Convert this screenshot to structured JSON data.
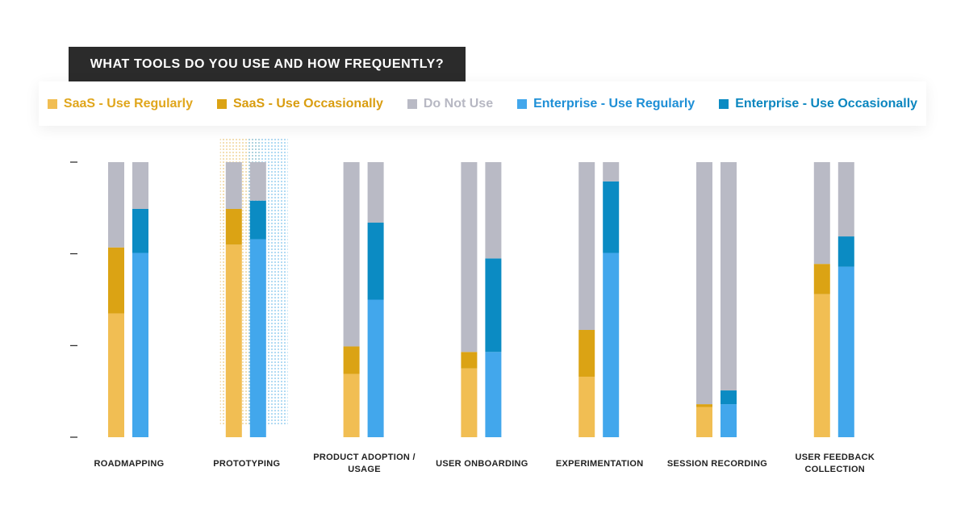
{
  "title": "WHAT TOOLS DO YOU USE AND HOW FREQUENTLY?",
  "legend": [
    {
      "label": "SaaS - Use Regularly",
      "color": "#f1be53",
      "text_color": "#e0a61c"
    },
    {
      "label": "SaaS - Use Occasionally",
      "color": "#dba314",
      "text_color": "#d99d10"
    },
    {
      "label": "Do Not Use",
      "color": "#b9bac5",
      "text_color": "#b7b8c3"
    },
    {
      "label": "Enterprise - Use Regularly",
      "color": "#42a7ec",
      "text_color": "#1e8fd6"
    },
    {
      "label": "Enterprise - Use Occasionally",
      "color": "#0b8bc3",
      "text_color": "#0b86bf"
    }
  ],
  "chart_data": {
    "type": "bar",
    "stacked": true,
    "grouped": true,
    "ylim": [
      0,
      100
    ],
    "y_ticks": [
      0,
      33.3,
      66.7,
      100
    ],
    "y_tick_labels": [
      "",
      "",
      "",
      ""
    ],
    "grid": false,
    "legend_position": "top",
    "categories": [
      {
        "label": [
          "ROADMAPPING"
        ]
      },
      {
        "label": [
          "PROTOTYPING"
        ],
        "highlighted": true
      },
      {
        "label": [
          "PRODUCT ADOPTION /",
          "USAGE"
        ]
      },
      {
        "label": [
          "USER ONBOARDING"
        ]
      },
      {
        "label": [
          "EXPERIMENTATION"
        ]
      },
      {
        "label": [
          "SESSION RECORDING"
        ]
      },
      {
        "label": [
          "USER FEEDBACK",
          "COLLECTION"
        ]
      }
    ],
    "groups": [
      {
        "name": "SaaS",
        "series": [
          {
            "name": "SaaS - Use Regularly",
            "color": "#f1be53",
            "values": [
              45,
              70,
              23,
              25,
              22,
              11,
              52
            ]
          },
          {
            "name": "SaaS - Use Occasionally",
            "color": "#dba314",
            "values": [
              24,
              13,
              10,
              6,
              17,
              1,
              11
            ]
          },
          {
            "name": "Do Not Use",
            "color": "#b9bac5",
            "values": [
              31,
              17,
              67,
              69,
              61,
              88,
              37
            ]
          }
        ]
      },
      {
        "name": "Enterprise",
        "series": [
          {
            "name": "Enterprise - Use Regularly",
            "color": "#42a7ec",
            "values": [
              67,
              72,
              50,
              31,
              67,
              12,
              62
            ]
          },
          {
            "name": "Enterprise - Use Occasionally",
            "color": "#0b8bc3",
            "values": [
              16,
              14,
              28,
              34,
              26,
              5,
              11
            ]
          },
          {
            "name": "Do Not Use",
            "color": "#b9bac5",
            "values": [
              17,
              14,
              22,
              35,
              7,
              83,
              27
            ]
          }
        ]
      }
    ]
  }
}
